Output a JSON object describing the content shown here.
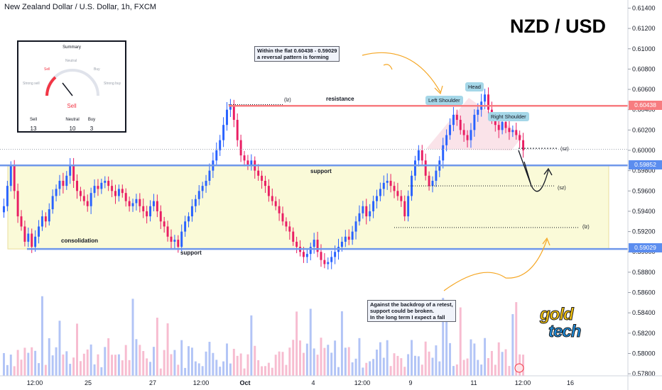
{
  "header": {
    "symbol_line": "New Zealand Dollar / U.S. Dollar, 1h, FXCM",
    "pair_title": "NZD / USD"
  },
  "summary": {
    "title": "Summary",
    "gauge_labels": {
      "strong_sell": "Strong sell",
      "sell": "Sell",
      "neutral": "Neutral",
      "buy": "Buy",
      "strong_buy": "Strong buy"
    },
    "value": "Sell",
    "counts": [
      {
        "label": "Sell",
        "value": "13"
      },
      {
        "label": "Neutral",
        "value": "10"
      },
      {
        "label": "Buy",
        "value": "3"
      }
    ]
  },
  "annotations": {
    "note_top": [
      "Within the flat 0.60438 - 0.59029",
      "a reversal pattern is forming"
    ],
    "note_bottom": [
      "Against the backdrop of a retest,",
      "support could be broken.",
      "In the long term I expect a fall"
    ],
    "left_shoulder": "Left Shoulder",
    "head": "Head",
    "right_shoulder": "Right Shoulder",
    "resistance": "resistance",
    "support_mid": "support",
    "support_low": "support",
    "consolidation": "consolidation",
    "lz_top": "(lz)",
    "sz_top": "(sz)",
    "sz_mid": "(sz)",
    "lz_low": "(lz)"
  },
  "logo": {
    "line1": "gold",
    "line2": "tech"
  },
  "colors": {
    "up": "#2962ff",
    "down": "#e91e63",
    "resistance": "#f77c80",
    "support": "#6f97ea",
    "zone": "#fafad2",
    "arrow": "#f5a623"
  },
  "chart_data": {
    "type": "candlestick",
    "title": "New Zealand Dollar / U.S. Dollar, 1h, FXCM",
    "ylim": [
      0.5778,
      0.6148
    ],
    "y_ticks": [
      "0.61400",
      "0.61200",
      "0.61000",
      "0.60800",
      "0.60600",
      "0.60400",
      "0.60200",
      "0.60000",
      "0.59800",
      "0.59600",
      "0.59400",
      "0.59200",
      "0.59000",
      "0.58800",
      "0.58600",
      "0.58400",
      "0.58200",
      "0.58000",
      "0.57800"
    ],
    "x_ticks": [
      "12:00",
      "25",
      "27",
      "12:00",
      "Oct",
      "4",
      "12:00",
      "9",
      "11",
      "12:00",
      "16"
    ],
    "levels": [
      {
        "name": "resistance",
        "value": 0.60438,
        "label": "0.60438"
      },
      {
        "name": "support-upper",
        "value": 0.59852,
        "label": "0.59852"
      },
      {
        "name": "support-lower",
        "value": 0.59029,
        "label": "0.59029"
      }
    ],
    "zones": {
      "consolidation": [
        0.59029,
        0.59852
      ],
      "targets": [
        {
          "name": "lz_top",
          "value": 0.6045
        },
        {
          "name": "sz_top",
          "value": 0.6002
        },
        {
          "name": "sz_mid",
          "value": 0.5965
        },
        {
          "name": "lz_low",
          "value": 0.5924
        }
      ]
    },
    "price_path": [
      0.5945,
      0.5965,
      0.5985,
      0.596,
      0.5935,
      0.5925,
      0.591,
      0.5918,
      0.5905,
      0.5915,
      0.5925,
      0.5935,
      0.593,
      0.5942,
      0.5955,
      0.5962,
      0.597,
      0.5965,
      0.5975,
      0.5985,
      0.597,
      0.596,
      0.5955,
      0.595,
      0.5945,
      0.5958,
      0.5965,
      0.5962,
      0.5968,
      0.597,
      0.5965,
      0.596,
      0.5955,
      0.5962,
      0.5958,
      0.595,
      0.5945,
      0.5948,
      0.5952,
      0.5945,
      0.594,
      0.5935,
      0.5945,
      0.595,
      0.594,
      0.593,
      0.5925,
      0.5915,
      0.591,
      0.5912,
      0.5905,
      0.592,
      0.593,
      0.5935,
      0.5945,
      0.5952,
      0.596,
      0.5965,
      0.597,
      0.598,
      0.599,
      0.6,
      0.601,
      0.6025,
      0.604,
      0.6045,
      0.603,
      0.601,
      0.5995,
      0.599,
      0.5985,
      0.599,
      0.598,
      0.5975,
      0.597,
      0.5965,
      0.5955,
      0.595,
      0.5945,
      0.5938,
      0.593,
      0.5925,
      0.592,
      0.591,
      0.5905,
      0.59,
      0.5895,
      0.5898,
      0.5905,
      0.5912,
      0.59,
      0.5892,
      0.5888,
      0.589,
      0.5895,
      0.59,
      0.5905,
      0.591,
      0.5915,
      0.5912,
      0.592,
      0.593,
      0.5938,
      0.5945,
      0.5935,
      0.594,
      0.595,
      0.5955,
      0.5962,
      0.5968,
      0.597,
      0.5965,
      0.596,
      0.5955,
      0.595,
      0.5935,
      0.5955,
      0.5975,
      0.599,
      0.6,
      0.599,
      0.5975,
      0.5965,
      0.597,
      0.598,
      0.599,
      0.6005,
      0.6015,
      0.6025,
      0.6035,
      0.603,
      0.602,
      0.6015,
      0.601,
      0.602,
      0.6035,
      0.604,
      0.6048,
      0.6055,
      0.604,
      0.603,
      0.6025,
      0.602,
      0.6028,
      0.6022,
      0.6018,
      0.602,
      0.6015,
      0.601,
      0.6
    ],
    "volume_max": 1
  }
}
